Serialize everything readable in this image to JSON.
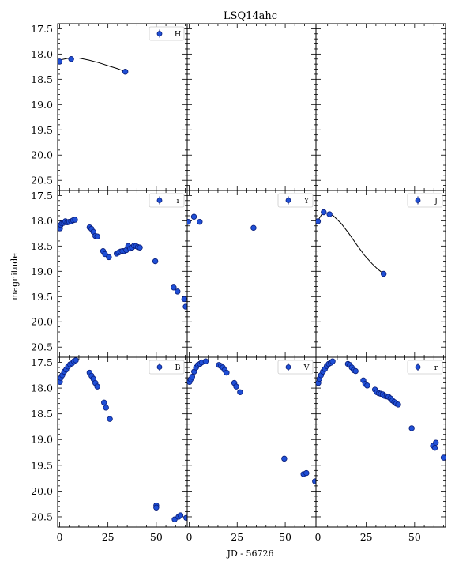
{
  "figure": {
    "title": "LSQ14ahc",
    "xlabel": "JD - 56726",
    "ylabel": "magnitude"
  },
  "colors": {
    "marker_fill": "#1f4fd6",
    "marker_edge": "#0a1e7a",
    "fit_line": "#000000",
    "axes": "#000000"
  },
  "chart_data": [
    {
      "type": "scatter",
      "band": "H",
      "xlim": [
        -1,
        66
      ],
      "ylim": [
        20.7,
        17.4
      ],
      "legend": "top-right",
      "points": [
        [
          0,
          18.15
        ],
        [
          6,
          18.1
        ],
        [
          34,
          18.35
        ]
      ],
      "fit": [
        [
          0,
          18.12
        ],
        [
          5,
          18.08
        ],
        [
          10,
          18.08
        ],
        [
          15,
          18.12
        ],
        [
          20,
          18.17
        ],
        [
          25,
          18.23
        ],
        [
          30,
          18.29
        ],
        [
          34,
          18.35
        ]
      ]
    },
    {
      "type": "scatter",
      "band": "",
      "xlim": [
        -1,
        66
      ],
      "ylim": [
        20.7,
        17.4
      ],
      "legend": "none",
      "points": [],
      "fit": []
    },
    {
      "type": "scatter",
      "band": "",
      "xlim": [
        -1,
        66
      ],
      "ylim": [
        20.7,
        17.4
      ],
      "legend": "none",
      "points": [],
      "fit": []
    },
    {
      "type": "scatter",
      "band": "i",
      "xlim": [
        -1,
        66
      ],
      "ylim": [
        20.7,
        17.4
      ],
      "legend": "top-right",
      "points": [
        [
          0.2,
          18.15
        ],
        [
          0.6,
          18.08
        ],
        [
          1.2,
          18.05
        ],
        [
          2,
          18.04
        ],
        [
          3,
          18.01
        ],
        [
          4,
          18.03
        ],
        [
          5,
          18.02
        ],
        [
          6,
          18.01
        ],
        [
          7,
          17.99
        ],
        [
          8,
          17.98
        ],
        [
          15.5,
          18.13
        ],
        [
          16.5,
          18.16
        ],
        [
          17.5,
          18.22
        ],
        [
          18.5,
          18.3
        ],
        [
          19.5,
          18.31
        ],
        [
          22.5,
          18.6
        ],
        [
          23.5,
          18.66
        ],
        [
          25.5,
          18.72
        ],
        [
          29.5,
          18.65
        ],
        [
          30.5,
          18.63
        ],
        [
          31.5,
          18.61
        ],
        [
          32.5,
          18.6
        ],
        [
          33.5,
          18.6
        ],
        [
          34.5,
          18.58
        ],
        [
          35.5,
          18.5
        ],
        [
          36.5,
          18.55
        ],
        [
          37.5,
          18.53
        ],
        [
          38.5,
          18.49
        ],
        [
          39.5,
          18.5
        ],
        [
          40.5,
          18.52
        ],
        [
          41.5,
          18.53
        ],
        [
          49.5,
          18.8
        ],
        [
          59,
          19.32
        ],
        [
          61,
          19.4
        ],
        [
          64.5,
          19.55
        ],
        [
          65.2,
          19.7
        ]
      ],
      "fit": []
    },
    {
      "type": "scatter",
      "band": "Y",
      "xlim": [
        -1,
        66
      ],
      "ylim": [
        20.7,
        17.4
      ],
      "legend": "top-right",
      "points": [
        [
          -0.5,
          18.02
        ],
        [
          2.5,
          17.92
        ],
        [
          5.5,
          18.02
        ],
        [
          33.5,
          18.14
        ]
      ],
      "fit": []
    },
    {
      "type": "scatter",
      "band": "J",
      "xlim": [
        -1,
        66
      ],
      "ylim": [
        20.7,
        17.4
      ],
      "legend": "top-right",
      "points": [
        [
          0,
          18.01
        ],
        [
          3,
          17.83
        ],
        [
          6,
          17.87
        ],
        [
          34,
          19.05
        ]
      ],
      "fit": [
        [
          0,
          18.0
        ],
        [
          2,
          17.87
        ],
        [
          4,
          17.84
        ],
        [
          8,
          17.9
        ],
        [
          12,
          18.05
        ],
        [
          16,
          18.25
        ],
        [
          20,
          18.47
        ],
        [
          24,
          18.68
        ],
        [
          28,
          18.85
        ],
        [
          31,
          18.96
        ],
        [
          34,
          19.05
        ]
      ]
    },
    {
      "type": "scatter",
      "band": "B",
      "xlim": [
        -1,
        66
      ],
      "ylim": [
        20.7,
        17.4
      ],
      "legend": "top-right",
      "points": [
        [
          0.2,
          17.88
        ],
        [
          0.6,
          17.8
        ],
        [
          1.4,
          17.75
        ],
        [
          2.4,
          17.68
        ],
        [
          3.4,
          17.64
        ],
        [
          4.4,
          17.58
        ],
        [
          5.4,
          17.54
        ],
        [
          6.4,
          17.52
        ],
        [
          7.4,
          17.48
        ],
        [
          8.4,
          17.46
        ],
        [
          15.5,
          17.7
        ],
        [
          16.5,
          17.76
        ],
        [
          17.5,
          17.82
        ],
        [
          18.5,
          17.9
        ],
        [
          19.5,
          17.97
        ],
        [
          23,
          18.28
        ],
        [
          24,
          18.38
        ],
        [
          26,
          18.6
        ],
        [
          50,
          20.28
        ],
        [
          50,
          20.32
        ],
        [
          59.5,
          20.55
        ],
        [
          61.5,
          20.5
        ],
        [
          62.5,
          20.47
        ],
        [
          65.5,
          20.52
        ]
      ],
      "fit": []
    },
    {
      "type": "scatter",
      "band": "V",
      "xlim": [
        -1,
        66
      ],
      "ylim": [
        20.7,
        17.4
      ],
      "legend": "top-right",
      "points": [
        [
          0.2,
          17.88
        ],
        [
          0.8,
          17.83
        ],
        [
          1.6,
          17.78
        ],
        [
          2.6,
          17.68
        ],
        [
          3.6,
          17.6
        ],
        [
          4.6,
          17.55
        ],
        [
          5.6,
          17.53
        ],
        [
          6.6,
          17.5
        ],
        [
          8.6,
          17.48
        ],
        [
          15.5,
          17.55
        ],
        [
          16.5,
          17.57
        ],
        [
          17.5,
          17.6
        ],
        [
          18.5,
          17.65
        ],
        [
          19.5,
          17.7
        ],
        [
          23.5,
          17.9
        ],
        [
          24.5,
          17.97
        ],
        [
          26.5,
          18.08
        ],
        [
          49.5,
          19.37
        ],
        [
          59.5,
          19.67
        ],
        [
          61,
          19.65
        ],
        [
          65.5,
          19.81
        ]
      ],
      "fit": []
    },
    {
      "type": "scatter",
      "band": "r",
      "xlim": [
        -1,
        66
      ],
      "ylim": [
        20.7,
        17.4
      ],
      "legend": "top-right",
      "points": [
        [
          0.2,
          17.9
        ],
        [
          0.8,
          17.82
        ],
        [
          1.6,
          17.75
        ],
        [
          2.6,
          17.68
        ],
        [
          3.6,
          17.63
        ],
        [
          4.6,
          17.57
        ],
        [
          5.6,
          17.53
        ],
        [
          6.6,
          17.51
        ],
        [
          7.6,
          17.48
        ],
        [
          15.5,
          17.53
        ],
        [
          16.5,
          17.55
        ],
        [
          17.5,
          17.6
        ],
        [
          18.5,
          17.65
        ],
        [
          19.5,
          17.67
        ],
        [
          23.5,
          17.85
        ],
        [
          24.5,
          17.92
        ],
        [
          25.5,
          17.95
        ],
        [
          29.5,
          18.03
        ],
        [
          30.5,
          18.08
        ],
        [
          31.5,
          18.1
        ],
        [
          32.5,
          18.11
        ],
        [
          33.5,
          18.12
        ],
        [
          34.5,
          18.15
        ],
        [
          35.5,
          18.16
        ],
        [
          36.5,
          18.17
        ],
        [
          37.5,
          18.2
        ],
        [
          38.5,
          18.24
        ],
        [
          39.5,
          18.27
        ],
        [
          40.5,
          18.3
        ],
        [
          41.5,
          18.32
        ],
        [
          48.5,
          18.78
        ],
        [
          59.5,
          19.12
        ],
        [
          60.5,
          19.16
        ],
        [
          61,
          19.06
        ],
        [
          65,
          19.35
        ]
      ],
      "fit": []
    }
  ]
}
